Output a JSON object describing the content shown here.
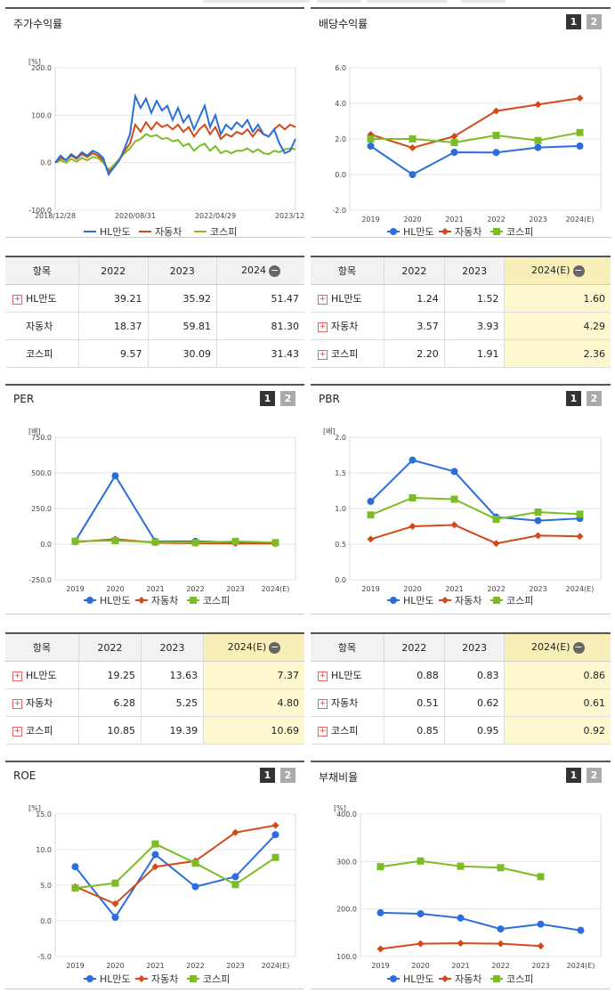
{
  "colors": {
    "hl": "#2a6fd9",
    "auto": "#d24a1a",
    "kospi": "#7cbc25"
  },
  "legend": [
    "HL만도",
    "자동차",
    "코스피"
  ],
  "panels": {
    "stock": {
      "title": "주가수익률"
    },
    "div": {
      "title": "배당수익률",
      "btn1": "1",
      "btn2": "2"
    },
    "per": {
      "title": "PER",
      "btn1": "1",
      "btn2": "2"
    },
    "pbr": {
      "title": "PBR",
      "btn1": "1",
      "btn2": "2"
    },
    "roe": {
      "title": "ROE",
      "btn1": "1",
      "btn2": "2"
    },
    "debt": {
      "title": "부채비율",
      "btn1": "1",
      "btn2": "2"
    }
  },
  "tables": {
    "stock": {
      "head": [
        "항목",
        "2022",
        "2023",
        "2024"
      ],
      "rows": [
        {
          "name": "HL만도",
          "plus": true,
          "v": [
            "39.21",
            "35.92",
            "51.47"
          ]
        },
        {
          "name": "자동차",
          "plus": false,
          "v": [
            "18.37",
            "59.81",
            "81.30"
          ]
        },
        {
          "name": "코스피",
          "plus": false,
          "v": [
            "9.57",
            "30.09",
            "31.43"
          ]
        }
      ]
    },
    "div": {
      "head": [
        "항목",
        "2022",
        "2023",
        "2024(E)"
      ],
      "rows": [
        {
          "name": "HL만도",
          "plus": true,
          "v": [
            "1.24",
            "1.52",
            "1.60"
          ]
        },
        {
          "name": "자동차",
          "plus": true,
          "v": [
            "3.57",
            "3.93",
            "4.29"
          ]
        },
        {
          "name": "코스피",
          "plus": true,
          "v": [
            "2.20",
            "1.91",
            "2.36"
          ]
        }
      ]
    },
    "per": {
      "head": [
        "항목",
        "2022",
        "2023",
        "2024(E)"
      ],
      "rows": [
        {
          "name": "HL만도",
          "plus": true,
          "v": [
            "19.25",
            "13.63",
            "7.37"
          ]
        },
        {
          "name": "자동차",
          "plus": true,
          "v": [
            "6.28",
            "5.25",
            "4.80"
          ]
        },
        {
          "name": "코스피",
          "plus": true,
          "v": [
            "10.85",
            "19.39",
            "10.69"
          ]
        }
      ]
    },
    "pbr": {
      "head": [
        "항목",
        "2022",
        "2023",
        "2024(E)"
      ],
      "rows": [
        {
          "name": "HL만도",
          "plus": true,
          "v": [
            "0.88",
            "0.83",
            "0.86"
          ]
        },
        {
          "name": "자동차",
          "plus": true,
          "v": [
            "0.51",
            "0.62",
            "0.61"
          ]
        },
        {
          "name": "코스피",
          "plus": true,
          "v": [
            "0.85",
            "0.95",
            "0.92"
          ]
        }
      ]
    }
  },
  "chart_data": [
    {
      "id": "stock",
      "type": "line",
      "unit": "[%]",
      "ylim": [
        -100,
        200
      ],
      "yticks": [
        "200.0",
        "100.0",
        "0.0",
        "-100.0"
      ],
      "x_labels": [
        "2018/12/28",
        "2020/08/31",
        "2022/04/29",
        "2023/12/28"
      ],
      "series": [
        {
          "name": "HL만도",
          "values": [
            0,
            15,
            5,
            18,
            10,
            22,
            15,
            25,
            20,
            10,
            -25,
            -10,
            5,
            30,
            60,
            140,
            115,
            135,
            105,
            130,
            110,
            120,
            90,
            115,
            85,
            100,
            70,
            95,
            120,
            75,
            100,
            60,
            80,
            70,
            85,
            75,
            90,
            65,
            80,
            60,
            55,
            70,
            40,
            20,
            25,
            50
          ]
        },
        {
          "name": "자동차",
          "values": [
            0,
            10,
            5,
            15,
            8,
            18,
            12,
            20,
            15,
            5,
            -20,
            -10,
            5,
            25,
            40,
            80,
            65,
            85,
            70,
            85,
            75,
            80,
            70,
            80,
            65,
            75,
            55,
            70,
            80,
            60,
            75,
            50,
            60,
            55,
            65,
            60,
            70,
            55,
            70,
            60,
            55,
            70,
            80,
            70,
            80,
            75
          ]
        },
        {
          "name": "코스피",
          "values": [
            0,
            5,
            0,
            8,
            2,
            10,
            5,
            12,
            10,
            0,
            -15,
            -5,
            8,
            20,
            30,
            45,
            50,
            60,
            55,
            58,
            50,
            52,
            45,
            48,
            35,
            40,
            25,
            35,
            40,
            25,
            35,
            20,
            25,
            20,
            25,
            25,
            30,
            22,
            28,
            20,
            18,
            25,
            22,
            28,
            30,
            28
          ]
        }
      ]
    },
    {
      "id": "div",
      "type": "line",
      "unit": "",
      "ylim": [
        -2,
        6
      ],
      "yticks": [
        "6.0",
        "4.0",
        "2.0",
        "0.0",
        "-2.0"
      ],
      "categories": [
        "2019",
        "2020",
        "2021",
        "2022",
        "2023",
        "2024(E)"
      ],
      "series": [
        {
          "name": "HL만도",
          "values": [
            1.6,
            0.0,
            1.25,
            1.24,
            1.52,
            1.6
          ]
        },
        {
          "name": "자동차",
          "values": [
            2.25,
            1.5,
            2.15,
            3.57,
            3.93,
            4.29
          ]
        },
        {
          "name": "코스피",
          "values": [
            2.0,
            2.0,
            1.8,
            2.2,
            1.91,
            2.36
          ]
        }
      ]
    },
    {
      "id": "per",
      "type": "line",
      "unit": "[배]",
      "ylim": [
        -250,
        750
      ],
      "yticks": [
        "750.0",
        "500.0",
        "250.0",
        "0.0",
        "-250.0"
      ],
      "categories": [
        "2019",
        "2020",
        "2021",
        "2022",
        "2023",
        "2024(E)"
      ],
      "series": [
        {
          "name": "HL만도",
          "values": [
            20,
            480,
            20,
            19.25,
            13.63,
            7.37
          ]
        },
        {
          "name": "자동차",
          "values": [
            15,
            35,
            10,
            6.28,
            5.25,
            4.8
          ]
        },
        {
          "name": "코스피",
          "values": [
            20,
            25,
            15,
            10.85,
            19.39,
            10.69
          ]
        }
      ]
    },
    {
      "id": "pbr",
      "type": "line",
      "unit": "[배]",
      "ylim": [
        0,
        2
      ],
      "yticks": [
        "2.0",
        "1.5",
        "1.0",
        "0.5",
        "0.0"
      ],
      "categories": [
        "2019",
        "2020",
        "2021",
        "2022",
        "2023",
        "2024(E)"
      ],
      "series": [
        {
          "name": "HL만도",
          "values": [
            1.1,
            1.68,
            1.52,
            0.88,
            0.83,
            0.86
          ]
        },
        {
          "name": "자동차",
          "values": [
            0.57,
            0.75,
            0.77,
            0.51,
            0.62,
            0.61
          ]
        },
        {
          "name": "코스피",
          "values": [
            0.91,
            1.15,
            1.13,
            0.85,
            0.95,
            0.92
          ]
        }
      ]
    },
    {
      "id": "roe",
      "type": "line",
      "unit": "[%]",
      "ylim": [
        -5,
        15
      ],
      "yticks": [
        "15.0",
        "10.0",
        "5.0",
        "0.0",
        "-5.0"
      ],
      "categories": [
        "2019",
        "2020",
        "2021",
        "2022",
        "2023",
        "2024(E)"
      ],
      "series": [
        {
          "name": "HL만도",
          "values": [
            7.6,
            0.5,
            9.3,
            4.8,
            6.2,
            12.1
          ]
        },
        {
          "name": "자동차",
          "values": [
            4.8,
            2.4,
            7.6,
            8.4,
            12.4,
            13.4
          ]
        },
        {
          "name": "코스피",
          "values": [
            4.6,
            5.3,
            10.8,
            8.1,
            5.1,
            8.9
          ]
        }
      ]
    },
    {
      "id": "debt",
      "type": "line",
      "unit": "[%]",
      "ylim": [
        100,
        400
      ],
      "yticks": [
        "400.0",
        "300.0",
        "200.0",
        "100.0"
      ],
      "categories": [
        "2019",
        "2020",
        "2021",
        "2022",
        "2023",
        "2024(E)"
      ],
      "series": [
        {
          "name": "HL만도",
          "values": [
            192,
            190,
            181,
            158,
            168,
            155
          ]
        },
        {
          "name": "자동차",
          "values": [
            116,
            127,
            128,
            127,
            122,
            null
          ]
        },
        {
          "name": "코스피",
          "values": [
            289,
            301,
            290,
            287,
            268,
            null
          ]
        }
      ]
    }
  ]
}
